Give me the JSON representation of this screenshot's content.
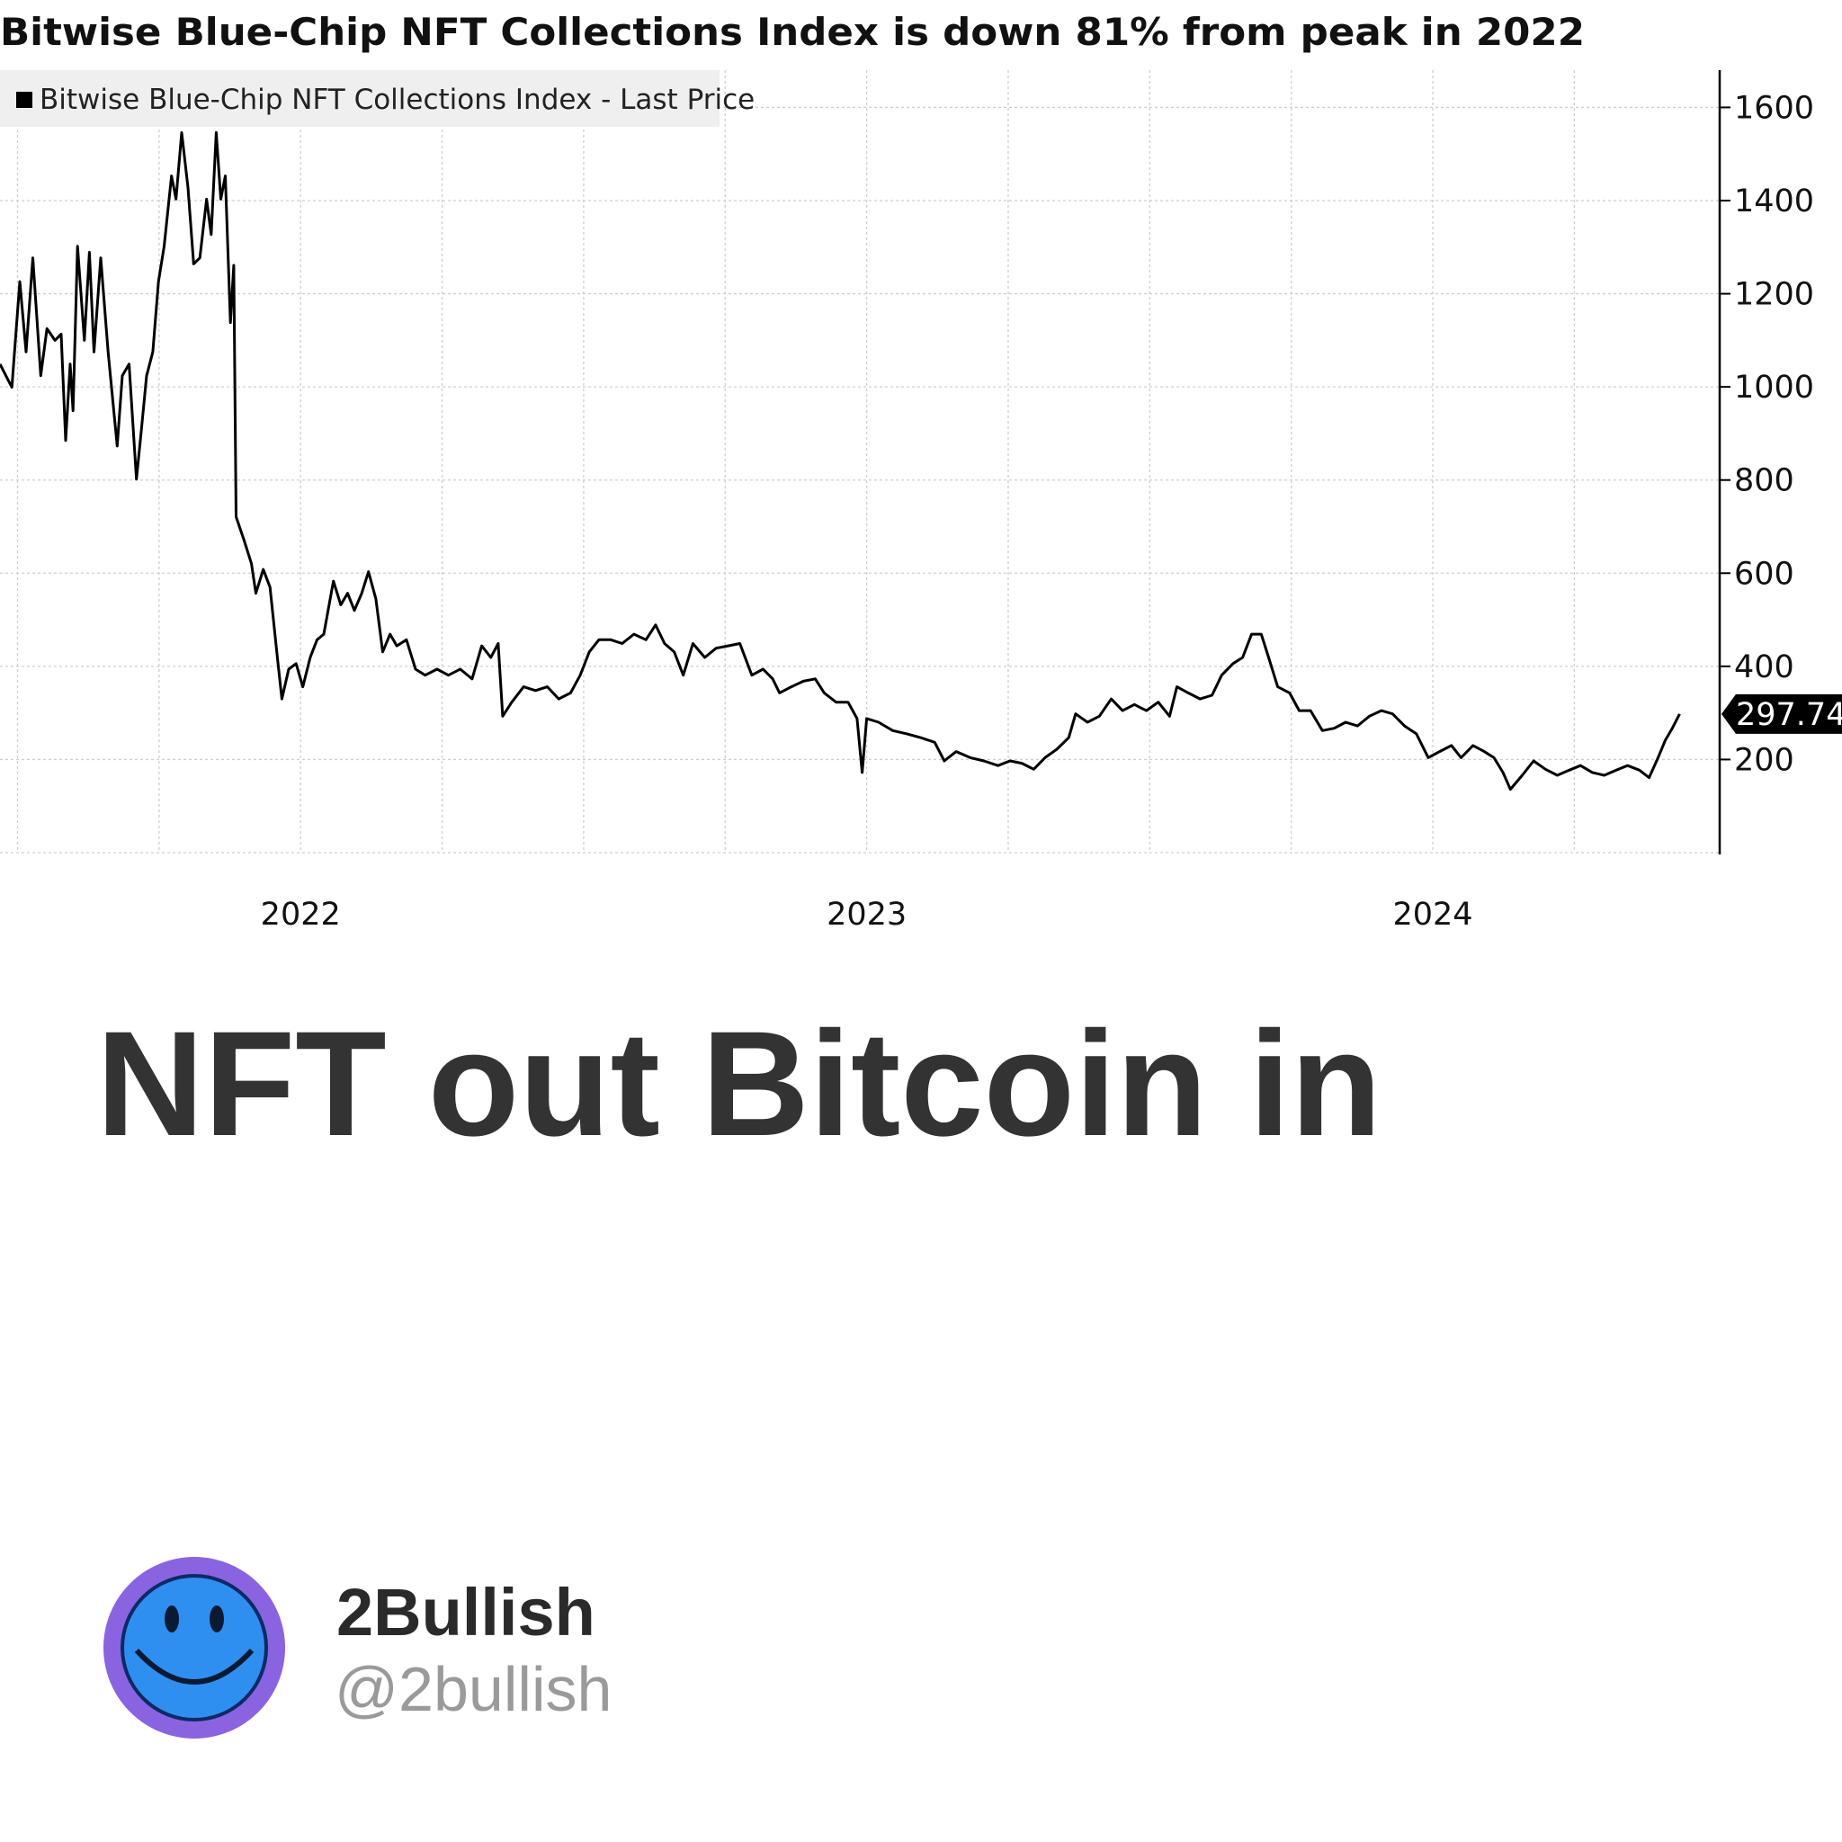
{
  "chart_data": {
    "type": "line",
    "title": "Bitwise Blue-Chip NFT Collections Index is down 81% from peak in 2022",
    "x": [
      2021.469,
      2021.49,
      2021.504,
      2021.515,
      2021.527,
      2021.541,
      2021.552,
      2021.566,
      2021.577,
      2021.585,
      2021.593,
      2021.598,
      2021.606,
      2021.618,
      2021.627,
      2021.635,
      2021.647,
      2021.66,
      2021.67,
      2021.676,
      2021.685,
      2021.697,
      2021.71,
      2021.718,
      2021.728,
      2021.739,
      2021.749,
      2021.759,
      2021.772,
      2021.78,
      2021.79,
      2021.801,
      2021.811,
      2021.822,
      2021.834,
      2021.842,
      2021.851,
      2021.859,
      2021.867,
      2021.876,
      2021.882,
      2021.886,
      2021.9,
      2021.913,
      2021.921,
      2021.934,
      2021.946,
      2021.959,
      2021.967,
      2021.979,
      2021.992,
      2022.004,
      2022.017,
      2022.029,
      2022.041,
      2022.058,
      2022.071,
      2022.083,
      2022.095,
      2022.108,
      2022.12,
      2022.133,
      2022.145,
      2022.158,
      2022.17,
      2022.187,
      2022.203,
      2022.22,
      2022.241,
      2022.261,
      2022.282,
      2022.303,
      2022.32,
      2022.336,
      2022.349,
      2022.357,
      2022.373,
      2022.394,
      2022.415,
      2022.436,
      2022.456,
      2022.477,
      2022.494,
      2022.51,
      2022.527,
      2022.548,
      2022.568,
      2022.589,
      2022.61,
      2022.627,
      2022.643,
      2022.66,
      2022.676,
      2022.693,
      2022.714,
      2022.734,
      2022.755,
      2022.776,
      2022.797,
      2022.817,
      2022.834,
      2022.846,
      2022.867,
      2022.888,
      2022.909,
      2022.925,
      2022.946,
      2022.967,
      2022.983,
      2022.992,
      2023.0,
      2023.021,
      2023.046,
      2023.071,
      2023.095,
      2023.12,
      2023.137,
      2023.158,
      2023.183,
      2023.207,
      2023.232,
      2023.253,
      2023.274,
      2023.295,
      2023.315,
      2023.336,
      2023.357,
      2023.369,
      2023.39,
      2023.411,
      2023.432,
      2023.452,
      2023.473,
      2023.494,
      2023.515,
      2023.535,
      2023.548,
      2023.568,
      2023.589,
      2023.61,
      2023.627,
      2023.647,
      2023.664,
      2023.68,
      2023.697,
      2023.71,
      2023.726,
      2023.747,
      2023.764,
      2023.784,
      2023.805,
      2023.826,
      2023.846,
      2023.867,
      2023.888,
      2023.909,
      2023.929,
      2023.95,
      2023.971,
      2023.992,
      2024.012,
      2024.033,
      2024.05,
      2024.071,
      2024.091,
      2024.108,
      2024.124,
      2024.137,
      2024.158,
      2024.178,
      2024.199,
      2024.22,
      2024.241,
      2024.261,
      2024.282,
      2024.303,
      2024.324,
      2024.344,
      2024.365,
      2024.382,
      2024.398,
      2024.411,
      2024.423,
      2024.436
    ],
    "series": [
      {
        "name": "Bitwise Blue-Chip NFT Collections Index - Last Price",
        "color": "#000000",
        "values": [
          1049,
          999,
          1226,
          1075,
          1277,
          1024,
          1125,
          1100,
          1113,
          885,
          1049,
          949,
          1302,
          1100,
          1289,
          1075,
          1277,
          1075,
          949,
          873,
          1024,
          1049,
          802,
          898,
          1024,
          1075,
          1226,
          1302,
          1453,
          1403,
          1546,
          1428,
          1264,
          1277,
          1403,
          1327,
          1546,
          1403,
          1453,
          1138,
          1261,
          721,
          671,
          621,
          557,
          608,
          570,
          419,
          330,
          394,
          406,
          356,
          419,
          457,
          469,
          583,
          532,
          557,
          520,
          557,
          603,
          545,
          431,
          469,
          444,
          457,
          394,
          381,
          394,
          381,
          394,
          373,
          444,
          419,
          449,
          293,
          323,
          356,
          348,
          356,
          330,
          343,
          381,
          431,
          457,
          457,
          449,
          469,
          457,
          489,
          449,
          431,
          381,
          449,
          419,
          439,
          444,
          449,
          381,
          394,
          373,
          343,
          356,
          368,
          373,
          343,
          323,
          323,
          288,
          172,
          288,
          280,
          262,
          255,
          247,
          237,
          197,
          217,
          204,
          197,
          187,
          197,
          192,
          179,
          204,
          222,
          247,
          298,
          280,
          293,
          330,
          305,
          318,
          305,
          323,
          293,
          356,
          343,
          330,
          338,
          381,
          406,
          419,
          469,
          469,
          419,
          356,
          343,
          305,
          305,
          262,
          267,
          280,
          272,
          293,
          305,
          298,
          272,
          255,
          204,
          217,
          230,
          204,
          230,
          217,
          204,
          172,
          136,
          166,
          197,
          179,
          166,
          177,
          187,
          172,
          166,
          177,
          187,
          177,
          161,
          204,
          242,
          267,
          297.74
        ]
      }
    ],
    "xlim": [
      2021.469,
      2024.502
    ],
    "xticks": [
      2022,
      2023,
      2024
    ],
    "x_gridlines": [
      2021.5,
      2021.75,
      2022,
      2022.25,
      2022.5,
      2022.75,
      2023,
      2023.25,
      2023.5,
      2023.75,
      2024,
      2024.25
    ],
    "ylim": [
      0,
      1680
    ],
    "yticks": [
      200,
      400,
      600,
      800,
      1000,
      1200,
      1400,
      1600
    ],
    "grid": true,
    "y_axis_side": "right",
    "legend": "top-left"
  },
  "post": {
    "text": "NFT out Bitcoin in"
  },
  "author": {
    "name": "2Bullish",
    "handle": "@2bullish"
  }
}
